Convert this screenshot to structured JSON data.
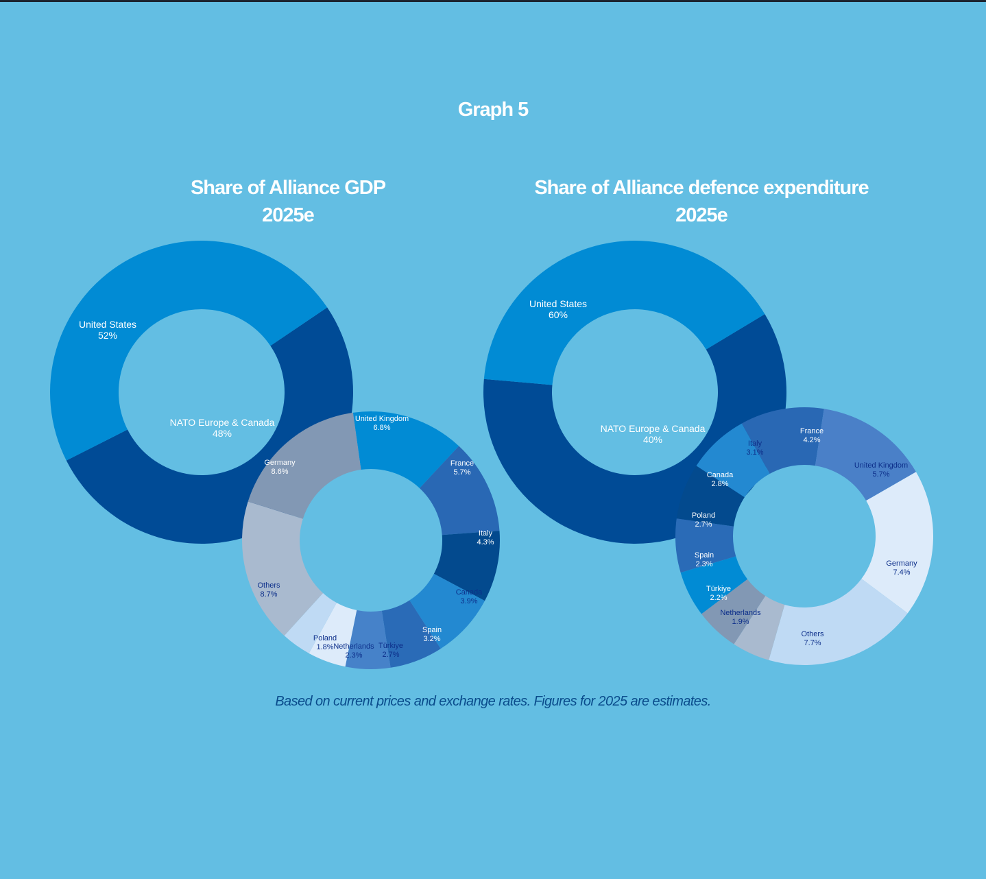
{
  "page": {
    "graph_title": "Graph 5",
    "footnote": "Based on current prices and exchange rates. Figures for 2025 are estimates.",
    "background_color": "#63bee3"
  },
  "chart_data": [
    {
      "type": "pie",
      "title": "Share of Alliance GDP",
      "subtitle": "2025e",
      "outer": {
        "slices": [
          {
            "label": "United States",
            "value_text": "52%",
            "value": 52,
            "color": "#004b96",
            "text_color": "#ffffff"
          },
          {
            "label": "NATO Europe & Canada",
            "value_text": "48%",
            "value": 48,
            "color": "#018bd4",
            "text_color": "#ffffff"
          }
        ]
      },
      "inner": {
        "slices": [
          {
            "label": "United Kingdom",
            "value_text": "6.8%",
            "value": 6.8,
            "color": "#018bd4",
            "text_color": "#ffffff"
          },
          {
            "label": "France",
            "value_text": "5.7%",
            "value": 5.7,
            "color": "#2968b4",
            "text_color": "#ffffff"
          },
          {
            "label": "Italy",
            "value_text": "4.3%",
            "value": 4.3,
            "color": "#034a8e",
            "text_color": "#ffffff"
          },
          {
            "label": "Canada",
            "value_text": "3.9%",
            "value": 3.9,
            "color": "#2389d1",
            "text_color": "#0d2f8a"
          },
          {
            "label": "Spain",
            "value_text": "3.2%",
            "value": 3.2,
            "color": "#2a6bb7",
            "text_color": "#ffffff"
          },
          {
            "label": "Türkiye",
            "value_text": "2.7%",
            "value": 2.7,
            "color": "#4682c9",
            "text_color": "#0d2f8a"
          },
          {
            "label": "Netherlands",
            "value_text": "2.3%",
            "value": 2.3,
            "color": "#ddebfa",
            "text_color": "#0d2f8a"
          },
          {
            "label": "Poland",
            "value_text": "1.8%",
            "value": 1.8,
            "color": "#bfdaf4",
            "text_color": "#0d2f8a"
          },
          {
            "label": "Others",
            "value_text": "8.7%",
            "value": 8.7,
            "color": "#a9bacf",
            "text_color": "#0d2f8a"
          },
          {
            "label": "Germany",
            "value_text": "8.6%",
            "value": 8.6,
            "color": "#8298b4",
            "text_color": "#ffffff"
          }
        ]
      }
    },
    {
      "type": "pie",
      "title": "Share of Alliance defence expenditure",
      "subtitle": "2025e",
      "outer": {
        "slices": [
          {
            "label": "United States",
            "value_text": "60%",
            "value": 60,
            "color": "#004b96",
            "text_color": "#ffffff"
          },
          {
            "label": "NATO Europe & Canada",
            "value_text": "40%",
            "value": 40,
            "color": "#018bd4",
            "text_color": "#ffffff"
          }
        ]
      },
      "inner": {
        "slices": [
          {
            "label": "France",
            "value_text": "4.2%",
            "value": 4.2,
            "color": "#2968b4",
            "text_color": "#ffffff"
          },
          {
            "label": "United Kingdom",
            "value_text": "5.7%",
            "value": 5.7,
            "color": "#4a80c8",
            "text_color": "#0d2f8a"
          },
          {
            "label": "Germany",
            "value_text": "7.4%",
            "value": 7.4,
            "color": "#ddebfa",
            "text_color": "#0d2f8a"
          },
          {
            "label": "Others",
            "value_text": "7.7%",
            "value": 7.7,
            "color": "#bfdaf4",
            "text_color": "#0d2f8a"
          },
          {
            "label": "Netherlands",
            "value_text": "1.9%",
            "value": 1.9,
            "color": "#a9bacf",
            "text_color": "#0d2f8a"
          },
          {
            "label": "Türkiye",
            "value_text": "2.2%",
            "value": 2.2,
            "color": "#8298b4",
            "text_color": "#ffffff"
          },
          {
            "label": "Spain",
            "value_text": "2.3%",
            "value": 2.3,
            "color": "#018bd4",
            "text_color": "#ffffff"
          },
          {
            "label": "Poland",
            "value_text": "2.7%",
            "value": 2.7,
            "color": "#2a6bb7",
            "text_color": "#ffffff"
          },
          {
            "label": "Canada",
            "value_text": "2.8%",
            "value": 2.8,
            "color": "#034a8e",
            "text_color": "#ffffff"
          },
          {
            "label": "Italy",
            "value_text": "3.1%",
            "value": 3.1,
            "color": "#2389d1",
            "text_color": "#0d2f8a"
          }
        ]
      }
    }
  ]
}
